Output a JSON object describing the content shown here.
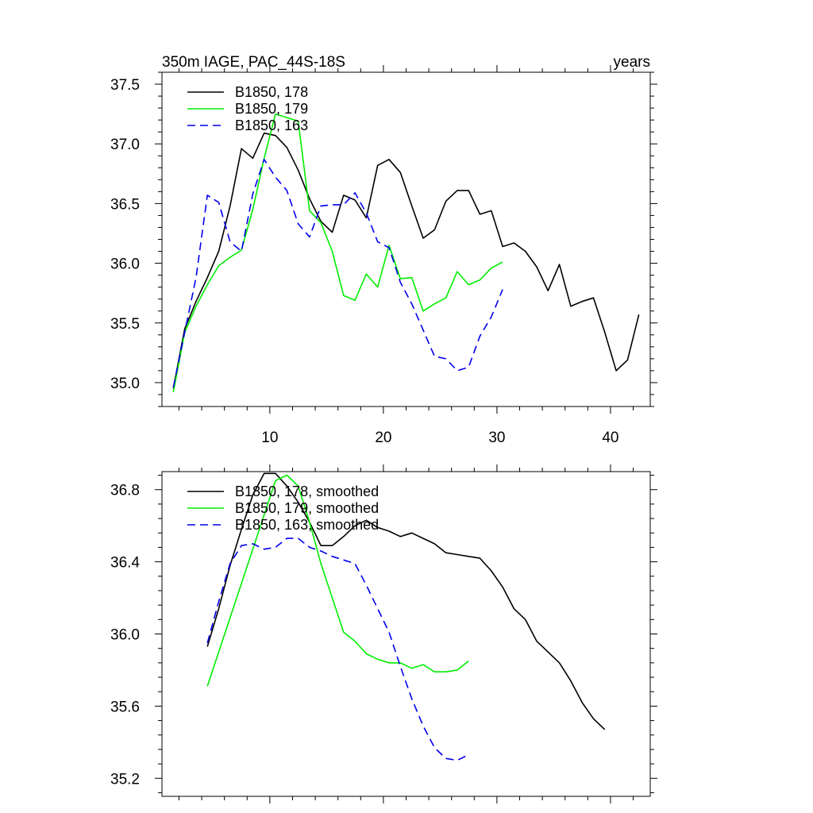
{
  "title_left": "350m IAGE, PAC_44S-18S",
  "title_right": "years",
  "chart_data": [
    {
      "type": "line",
      "panel": "top",
      "xlim": [
        0.5,
        43.5
      ],
      "ylim": [
        34.8,
        37.6
      ],
      "x_ticks": [
        10,
        20,
        30,
        40
      ],
      "y_ticks": [
        35.0,
        35.5,
        36.0,
        36.5,
        37.0,
        37.5
      ],
      "legend_position": "top-left",
      "series": [
        {
          "name": "B1850, 178",
          "color": "#000000",
          "dash": "solid",
          "x": [
            1.5,
            2.5,
            3.5,
            4.5,
            5.5,
            6.5,
            7.5,
            8.5,
            9.5,
            10.5,
            11.5,
            12.5,
            13.5,
            14.5,
            15.5,
            16.5,
            17.5,
            18.5,
            19.5,
            20.5,
            21.5,
            22.5,
            23.5,
            24.5,
            25.5,
            26.5,
            27.5,
            28.5,
            29.5,
            30.5,
            31.5,
            32.5,
            33.5,
            34.5,
            35.5,
            36.5,
            37.5,
            38.5,
            39.5,
            40.5,
            41.5,
            42.5
          ],
          "y": [
            34.95,
            35.45,
            35.68,
            35.88,
            36.1,
            36.48,
            36.96,
            36.88,
            37.09,
            37.07,
            36.97,
            36.78,
            36.54,
            36.35,
            36.26,
            36.57,
            36.53,
            36.38,
            36.82,
            36.87,
            36.76,
            36.48,
            36.21,
            36.28,
            36.52,
            36.61,
            36.61,
            36.41,
            36.44,
            36.14,
            36.17,
            36.1,
            35.97,
            35.77,
            35.99,
            35.64,
            35.68,
            35.71,
            35.42,
            35.1,
            35.19,
            35.57
          ]
        },
        {
          "name": "B1850, 179",
          "color": "#00ee00",
          "dash": "solid",
          "x": [
            1.5,
            2.5,
            3.5,
            4.5,
            5.5,
            6.5,
            7.5,
            8.5,
            9.5,
            10.5,
            11.5,
            12.5,
            13.5,
            14.5,
            15.5,
            16.5,
            17.5,
            18.5,
            19.5,
            20.5,
            21.5,
            22.5,
            23.5,
            24.5,
            25.5,
            26.5,
            27.5,
            28.5,
            29.5,
            30.5
          ],
          "y": [
            34.92,
            35.42,
            35.64,
            35.82,
            35.98,
            36.05,
            36.11,
            36.45,
            36.88,
            37.25,
            37.22,
            37.19,
            36.44,
            36.34,
            36.1,
            35.73,
            35.69,
            35.91,
            35.8,
            36.15,
            35.87,
            35.88,
            35.6,
            35.66,
            35.71,
            35.93,
            35.82,
            35.86,
            35.96,
            36.01
          ]
        },
        {
          "name": "B1850, 163",
          "color": "#0000ee",
          "dash": "dashed",
          "x": [
            1.5,
            2.5,
            3.5,
            4.5,
            5.5,
            6.5,
            7.5,
            8.5,
            9.5,
            10.5,
            11.5,
            12.5,
            13.5,
            14.5,
            15.5,
            16.5,
            17.5,
            18.5,
            19.5,
            20.5,
            21.5,
            22.5,
            23.5,
            24.5,
            25.5,
            26.5,
            27.5,
            28.5,
            29.5,
            30.5
          ],
          "y": [
            34.96,
            35.42,
            35.88,
            36.57,
            36.51,
            36.18,
            36.1,
            36.58,
            36.87,
            36.72,
            36.61,
            36.33,
            36.22,
            36.48,
            36.49,
            36.49,
            36.59,
            36.42,
            36.18,
            36.13,
            35.84,
            35.66,
            35.44,
            35.22,
            35.2,
            35.1,
            35.13,
            35.39,
            35.55,
            35.78
          ]
        }
      ]
    },
    {
      "type": "line",
      "panel": "bottom",
      "xlim": [
        0.5,
        43.5
      ],
      "ylim": [
        35.1,
        36.9
      ],
      "x_ticks": [
        10,
        20,
        30,
        40
      ],
      "y_ticks": [
        35.2,
        35.6,
        36.0,
        36.4,
        36.8
      ],
      "legend_position": "top-left",
      "series": [
        {
          "name": "B1850, 178, smoothed",
          "color": "#000000",
          "dash": "solid",
          "x": [
            4.5,
            5.5,
            6.5,
            7.5,
            8.5,
            9.5,
            10.5,
            11.5,
            12.5,
            13.5,
            14.5,
            15.5,
            16.5,
            17.5,
            18.5,
            19.5,
            20.5,
            21.5,
            22.5,
            23.5,
            24.5,
            25.5,
            26.5,
            27.5,
            28.5,
            29.5,
            30.5,
            31.5,
            32.5,
            33.5,
            34.5,
            35.5,
            36.5,
            37.5,
            38.5,
            39.5
          ],
          "y": [
            35.93,
            36.14,
            36.38,
            36.58,
            36.77,
            36.89,
            36.89,
            36.82,
            36.73,
            36.62,
            36.49,
            36.49,
            36.54,
            36.6,
            36.63,
            36.59,
            36.57,
            36.54,
            36.56,
            36.53,
            36.5,
            36.45,
            36.44,
            36.43,
            36.42,
            36.35,
            36.26,
            36.14,
            36.08,
            35.96,
            35.9,
            35.84,
            35.74,
            35.62,
            35.53,
            35.47
          ]
        },
        {
          "name": "B1850, 179, smoothed",
          "color": "#00ee00",
          "dash": "solid",
          "x": [
            4.5,
            10.5,
            11.5,
            12.5,
            13.5,
            14.5,
            15.5,
            16.5,
            17.5,
            18.5,
            19.5,
            20.5,
            21.5,
            22.5,
            23.5,
            24.5,
            25.5,
            26.5,
            27.5
          ],
          "y": [
            35.71,
            36.85,
            36.88,
            36.82,
            36.62,
            36.39,
            36.2,
            36.01,
            35.96,
            35.89,
            35.86,
            35.84,
            35.84,
            35.81,
            35.83,
            35.79,
            35.79,
            35.8,
            35.85
          ]
        },
        {
          "name": "B1850, 163, smoothed",
          "color": "#0000ee",
          "dash": "dashed",
          "x": [
            4.5,
            5.5,
            6.5,
            7.5,
            8.5,
            9.5,
            10.5,
            11.5,
            12.5,
            13.5,
            14.5,
            15.5,
            16.5,
            17.5,
            18.5,
            19.5,
            20.5,
            21.5,
            22.5,
            23.5,
            24.5,
            25.5,
            26.5,
            27.5
          ],
          "y": [
            35.95,
            36.18,
            36.39,
            36.49,
            36.5,
            36.47,
            36.48,
            36.53,
            36.53,
            36.48,
            36.46,
            36.43,
            36.41,
            36.39,
            36.27,
            36.14,
            36.01,
            35.82,
            35.64,
            35.49,
            35.37,
            35.31,
            35.3,
            35.33
          ]
        }
      ]
    }
  ]
}
